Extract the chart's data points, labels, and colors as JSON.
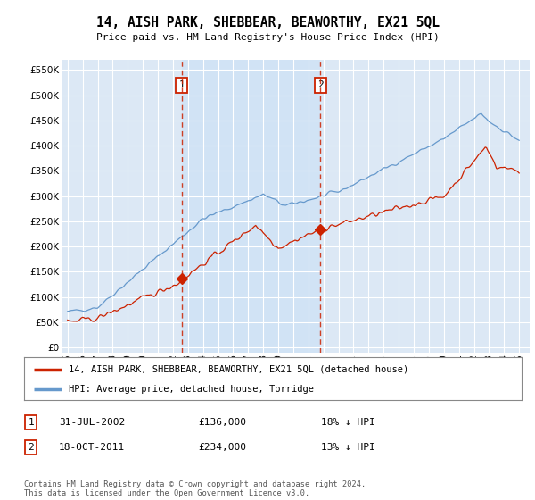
{
  "title": "14, AISH PARK, SHEBBEAR, BEAWORTHY, EX21 5QL",
  "subtitle": "Price paid vs. HM Land Registry's House Price Index (HPI)",
  "yticks": [
    0,
    50000,
    100000,
    150000,
    200000,
    250000,
    300000,
    350000,
    400000,
    450000,
    500000,
    550000
  ],
  "ylim": [
    -10000,
    570000
  ],
  "background_color": "#dce8f5",
  "fig_bg": "#ffffff",
  "grid_color": "#ffffff",
  "red_color": "#cc2200",
  "blue_color": "#6699cc",
  "sale1_x": 2002.583,
  "sale2_x": 2011.792,
  "sale1_price_y": 136000,
  "sale2_price_y": 234000,
  "sale1_date": "31-JUL-2002",
  "sale1_price": "£136,000",
  "sale1_hpi": "18% ↓ HPI",
  "sale2_date": "18-OCT-2011",
  "sale2_price": "£234,000",
  "sale2_hpi": "13% ↓ HPI",
  "legend_label_red": "14, AISH PARK, SHEBBEAR, BEAWORTHY, EX21 5QL (detached house)",
  "legend_label_blue": "HPI: Average price, detached house, Torridge",
  "footnote": "Contains HM Land Registry data © Crown copyright and database right 2024.\nThis data is licensed under the Open Government Licence v3.0.",
  "xlim_left": 1994.6,
  "xlim_right": 2025.7
}
